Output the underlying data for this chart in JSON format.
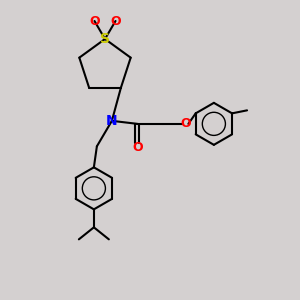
{
  "bg_color": "#d4d0d0",
  "line_color": "#000000",
  "bond_width": 1.5,
  "atom_colors": {
    "N": "#0000ff",
    "O": "#ff0000",
    "S": "#cccc00",
    "C": "#000000"
  }
}
